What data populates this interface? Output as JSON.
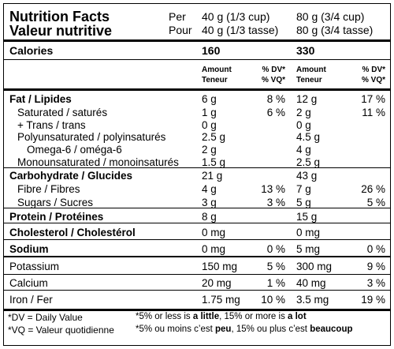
{
  "header": {
    "title": [
      "Nutrition Facts",
      "Valeur nutritive"
    ],
    "per": [
      "Per",
      "Pour"
    ],
    "servings": [
      [
        "40 g (1/3 cup)",
        "40 g (1/3 tasse)"
      ],
      [
        "80 g (3/4 cup)",
        "80 g (3/4 tasse)"
      ]
    ]
  },
  "calories": {
    "label": "Calories",
    "values": [
      "160",
      "330"
    ]
  },
  "columns_header": {
    "amount": [
      "Amount",
      "Teneur"
    ],
    "dv": [
      "% DV*",
      "% VQ*"
    ]
  },
  "nutrients": [
    {
      "label": "Fat / Lipides",
      "amounts": [
        "6 g",
        "12 g"
      ],
      "dv": [
        "8 %",
        "17 %"
      ]
    },
    {
      "label": "Saturated / saturés",
      "amounts": [
        "1 g",
        "2 g"
      ],
      "dv": [
        "6 %",
        "11 %"
      ]
    },
    {
      "label": "+ Trans / trans",
      "amounts": [
        "0 g",
        "0 g"
      ],
      "dv": [
        null,
        null
      ]
    },
    {
      "label": "Polyunsaturated / polyinsaturés",
      "amounts": [
        "2.5 g",
        "4.5 g"
      ],
      "dv": [
        null,
        null
      ]
    },
    {
      "label": "Omega-6 / oméga-6",
      "amounts": [
        "2 g",
        "4 g"
      ],
      "dv": [
        null,
        null
      ]
    },
    {
      "label": "Monounsaturated / monoinsaturés",
      "amounts": [
        "1.5 g",
        "2.5 g"
      ],
      "dv": [
        null,
        null
      ]
    },
    {
      "label": "Carbohydrate / Glucides",
      "amounts": [
        "21 g",
        "43 g"
      ],
      "dv": [
        null,
        null
      ]
    },
    {
      "label": "Fibre / Fibres",
      "amounts": [
        "4 g",
        "7 g"
      ],
      "dv": [
        "13 %",
        "26 %"
      ]
    },
    {
      "label": "Sugars / Sucres",
      "amounts": [
        "3 g",
        "5 g"
      ],
      "dv": [
        "3 %",
        "5 %"
      ]
    },
    {
      "label": "Protein / Protéines",
      "amounts": [
        "8 g",
        "15 g"
      ],
      "dv": [
        null,
        null
      ]
    },
    {
      "label": "Cholesterol / Cholestérol",
      "amounts": [
        "0 mg",
        "0 mg"
      ],
      "dv": [
        null,
        null
      ]
    },
    {
      "label": "Sodium",
      "amounts": [
        "0 mg",
        "5 mg"
      ],
      "dv": [
        "0 %",
        "0 %"
      ]
    },
    {
      "label": "Potassium",
      "amounts": [
        "150 mg",
        "300 mg"
      ],
      "dv": [
        "5 %",
        "9 %"
      ]
    },
    {
      "label": "Calcium",
      "amounts": [
        "20 mg",
        "40 mg"
      ],
      "dv": [
        "1 %",
        "3 %"
      ]
    },
    {
      "label": "Iron / Fer",
      "amounts": [
        "1.75 mg",
        "3.5 mg"
      ],
      "dv": [
        "10 %",
        "19 %"
      ]
    }
  ],
  "footer": {
    "definitions": [
      "*DV = Daily Value",
      "*VQ = Valeur quotidienne"
    ],
    "notes": [
      [
        "*5% or less is ",
        "a little",
        ", 15% or more is ",
        "a lot"
      ],
      [
        "*5% ou moins c’est ",
        "peu",
        ", 15% ou plus c’est ",
        "beaucoup"
      ]
    ]
  }
}
